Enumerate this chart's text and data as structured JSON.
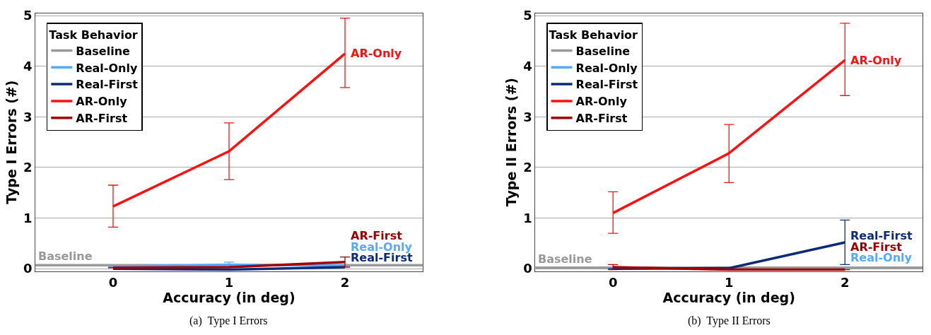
{
  "chart_data": [
    {
      "type": "line",
      "xlabel": "Accuracy (in deg)",
      "ylabel": "Type I Errors (#)",
      "legend_title": "Task Behavior",
      "legend": "top left",
      "grid": "y",
      "line_style": "solid",
      "marker": "none",
      "x": [
        0,
        1,
        2
      ],
      "xlim": [
        -0.67,
        2.67
      ],
      "xticks": [
        0,
        1,
        2
      ],
      "ylim": [
        -0.05,
        5.05
      ],
      "yticks": [
        0,
        1,
        2,
        3,
        4,
        5
      ],
      "series": [
        {
          "name": "Real-Only",
          "color": "#55aaff",
          "values": [
            0.04,
            0.08,
            0.06
          ],
          "errors": [
            null,
            0.05,
            null
          ]
        },
        {
          "name": "Real-First",
          "color": "#0d2a78",
          "values": [
            0.0,
            -0.02,
            0.03
          ]
        },
        {
          "name": "AR-Only",
          "color": "#ff1010",
          "values": [
            1.23,
            2.32,
            4.25
          ],
          "errors": [
            [
              0.82,
              1.65
            ],
            [
              1.76,
              2.88
            ],
            [
              3.58,
              4.95
            ]
          ]
        },
        {
          "name": "AR-First",
          "color": "#a00000",
          "values": [
            0.02,
            0.03,
            0.13
          ],
          "errors": [
            null,
            null,
            0.1
          ]
        }
      ],
      "ref_lines": [
        {
          "axis": "y",
          "value": 0.07,
          "label": "Baseline",
          "color": "#999999"
        }
      ],
      "annotations": [
        "(a)  Type I Errors"
      ]
    },
    {
      "type": "line",
      "xlabel": "Accuracy (in deg)",
      "ylabel": "Type II Errors (#)",
      "legend_title": "Task Behavior",
      "legend": "top left",
      "grid": "y",
      "line_style": "solid",
      "marker": "none",
      "x": [
        0,
        1,
        2
      ],
      "xlim": [
        -0.67,
        2.67
      ],
      "xticks": [
        0,
        1,
        2
      ],
      "ylim": [
        -0.05,
        5.05
      ],
      "yticks": [
        0,
        1,
        2,
        3,
        4,
        5
      ],
      "series": [
        {
          "name": "Real-Only",
          "color": "#55aaff",
          "values": [
            null,
            null,
            null
          ]
        },
        {
          "name": "Real-First",
          "color": "#0d2a78",
          "values": [
            0.0,
            0.01,
            0.52
          ],
          "errors": [
            null,
            null,
            [
              0.08,
              0.96
            ]
          ]
        },
        {
          "name": "AR-Only",
          "color": "#ff1010",
          "values": [
            1.1,
            2.28,
            4.12
          ],
          "errors": [
            [
              0.7,
              1.52
            ],
            [
              1.7,
              2.85
            ],
            [
              3.42,
              4.85
            ]
          ]
        },
        {
          "name": "AR-First",
          "color": "#a00000",
          "values": [
            0.03,
            -0.02,
            -0.02
          ],
          "errors": [
            0.05,
            null,
            null
          ]
        }
      ],
      "ref_lines": [
        {
          "axis": "y",
          "value": 0.02,
          "label": "Baseline",
          "color": "#999999"
        }
      ],
      "annotations": [
        "(b)  Type II Errors"
      ]
    }
  ]
}
